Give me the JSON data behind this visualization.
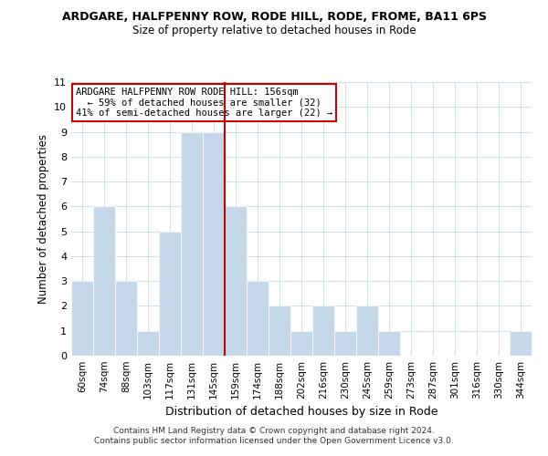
{
  "title_line1": "ARDGARE, HALFPENNY ROW, RODE HILL, RODE, FROME, BA11 6PS",
  "title_line2": "Size of property relative to detached houses in Rode",
  "xlabel": "Distribution of detached houses by size in Rode",
  "ylabel": "Number of detached properties",
  "bar_labels": [
    "60sqm",
    "74sqm",
    "88sqm",
    "103sqm",
    "117sqm",
    "131sqm",
    "145sqm",
    "159sqm",
    "174sqm",
    "188sqm",
    "202sqm",
    "216sqm",
    "230sqm",
    "245sqm",
    "259sqm",
    "273sqm",
    "287sqm",
    "301sqm",
    "316sqm",
    "330sqm",
    "344sqm"
  ],
  "bar_values": [
    3,
    6,
    3,
    1,
    5,
    9,
    9,
    6,
    3,
    2,
    1,
    2,
    1,
    2,
    1,
    0,
    0,
    0,
    0,
    0,
    1
  ],
  "bar_color": "#c5d8ea",
  "bar_edge_color": "#ffffff",
  "ref_line_index": 7,
  "ref_line_color": "#cc0000",
  "ylim": [
    0,
    11
  ],
  "yticks": [
    0,
    1,
    2,
    3,
    4,
    5,
    6,
    7,
    8,
    9,
    10,
    11
  ],
  "annotation_title": "ARDGARE HALFPENNY ROW RODE HILL: 156sqm",
  "annotation_line2": "← 59% of detached houses are smaller (32)",
  "annotation_line3": "41% of semi-detached houses are larger (22) →",
  "annotation_box_color": "#ffffff",
  "annotation_box_edge": "#cc0000",
  "footer_line1": "Contains HM Land Registry data © Crown copyright and database right 2024.",
  "footer_line2": "Contains public sector information licensed under the Open Government Licence v3.0.",
  "background_color": "#ffffff",
  "grid_color": "#ccdde8"
}
